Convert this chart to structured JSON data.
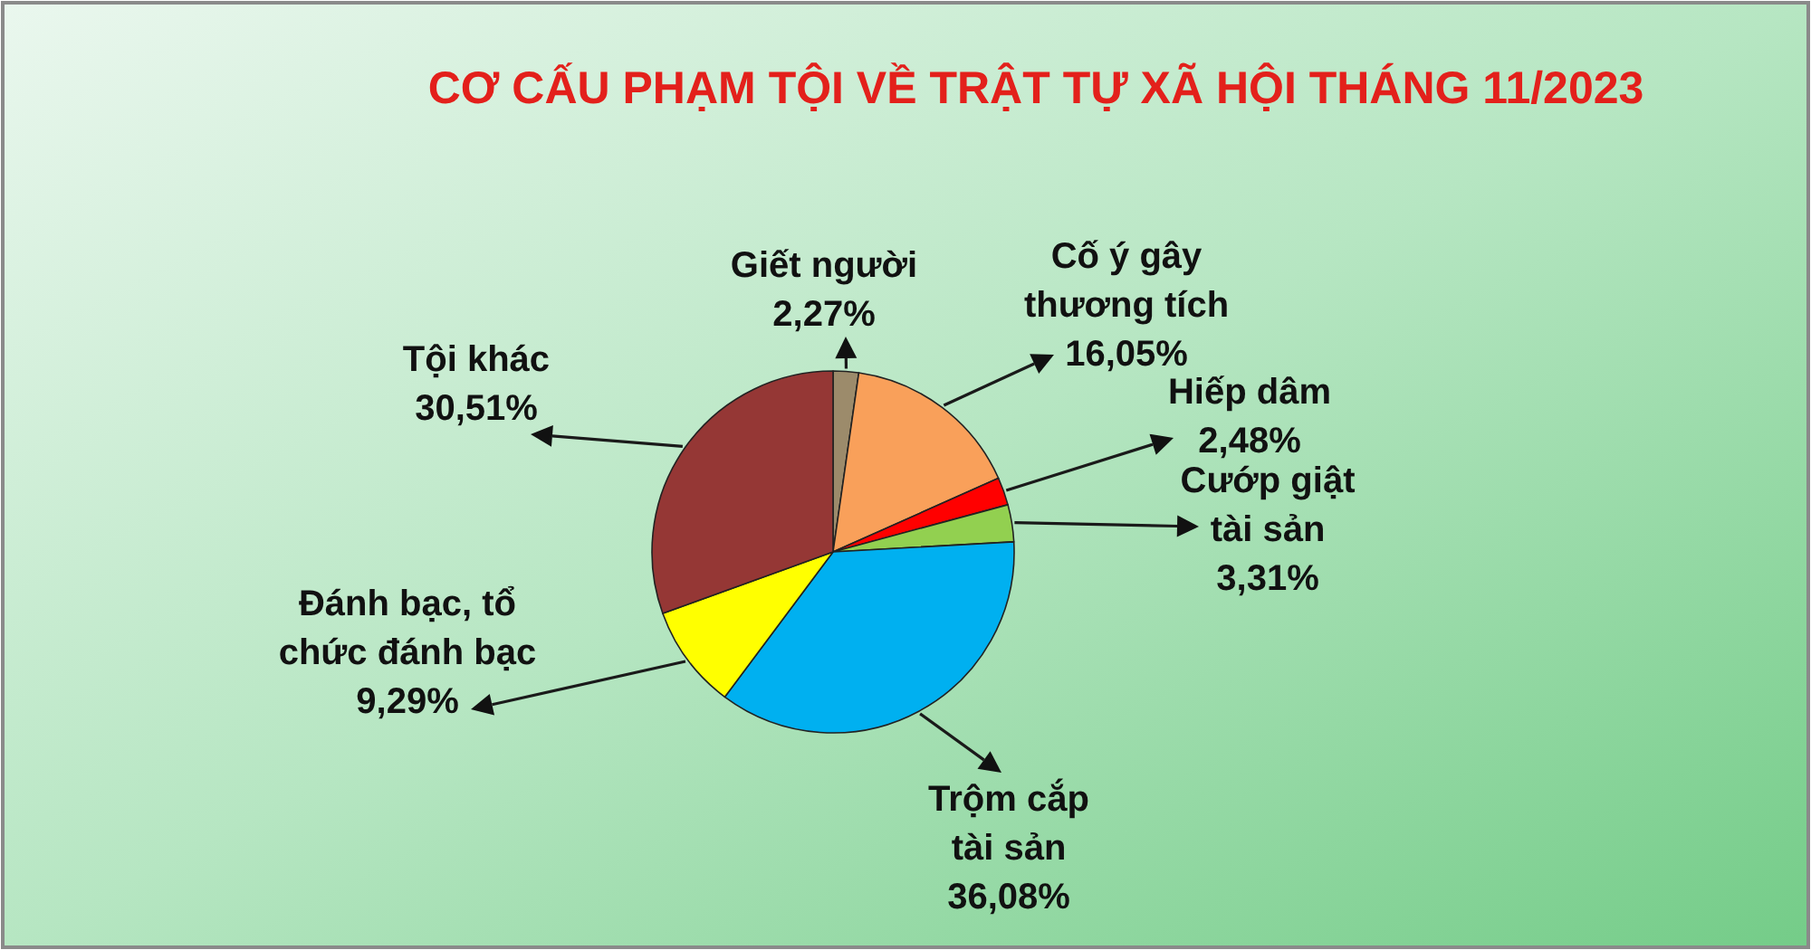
{
  "chart_data": {
    "type": "pie",
    "title": "CƠ CẤU PHẠM TỘI VỀ TRẬT TỰ XÃ HỘI THÁNG 11/2023",
    "categories": [
      "Giết người",
      "Cố ý gây thương tích",
      "Hiếp dâm",
      "Cướp giật tài sản",
      "Trộm cắp tài sản",
      "Đánh bạc, tổ chức đánh bạc",
      "Tội khác"
    ],
    "values": [
      2.27,
      16.05,
      2.48,
      3.31,
      36.08,
      9.29,
      30.51
    ],
    "colors": [
      "#9c8b6b",
      "#f9a05a",
      "#ff0000",
      "#92d050",
      "#00b0f0",
      "#ffff00",
      "#953735"
    ],
    "value_labels": [
      "2,27%",
      "16,05%",
      "2,48%",
      "3,31%",
      "36,08%",
      "9,29%",
      "30,51%"
    ]
  }
}
